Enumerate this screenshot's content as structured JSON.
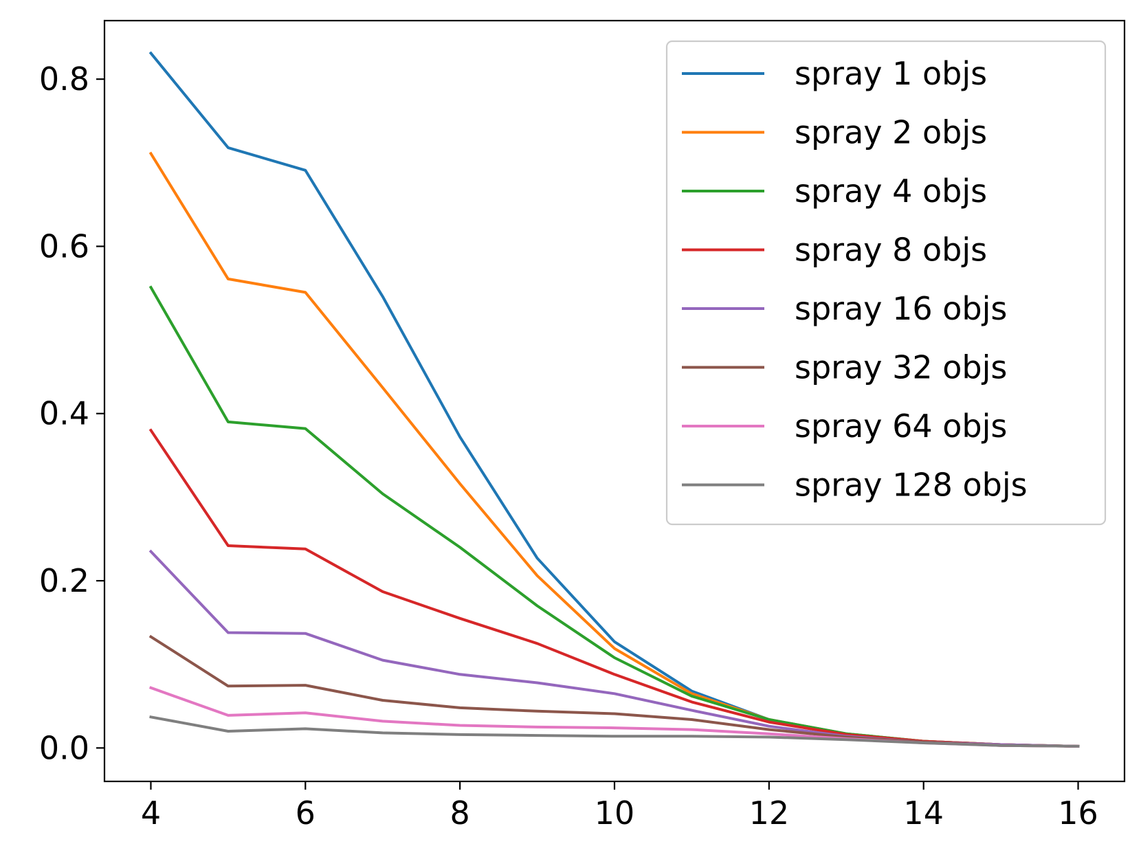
{
  "chart_data": {
    "type": "line",
    "title": "",
    "xlabel": "",
    "ylabel": "",
    "xlim": [
      3.4,
      16.6
    ],
    "ylim": [
      -0.04,
      0.87
    ],
    "xticks": [
      4,
      6,
      8,
      10,
      12,
      14,
      16
    ],
    "xtick_labels": [
      "4",
      "6",
      "8",
      "10",
      "12",
      "14",
      "16"
    ],
    "yticks": [
      0.0,
      0.2,
      0.4,
      0.6,
      0.8
    ],
    "ytick_labels": [
      "0.0",
      "0.2",
      "0.4",
      "0.6",
      "0.8"
    ],
    "grid": false,
    "legend_position": "top-right",
    "x": [
      4,
      5,
      6,
      7,
      8,
      9,
      10,
      11,
      12,
      13,
      14,
      15,
      16
    ],
    "series": [
      {
        "name": "spray 1 objs",
        "color": "#1f77b4",
        "values": [
          0.831,
          0.718,
          0.691,
          0.54,
          0.372,
          0.227,
          0.127,
          0.068,
          0.034,
          0.017,
          0.008,
          0.004,
          0.002
        ]
      },
      {
        "name": "spray 2 objs",
        "color": "#ff7f0e",
        "values": [
          0.711,
          0.561,
          0.545,
          0.431,
          0.316,
          0.206,
          0.119,
          0.065,
          0.034,
          0.017,
          0.008,
          0.004,
          0.002
        ]
      },
      {
        "name": "spray 4 objs",
        "color": "#2ca02c",
        "values": [
          0.551,
          0.39,
          0.382,
          0.304,
          0.24,
          0.17,
          0.108,
          0.062,
          0.034,
          0.017,
          0.008,
          0.004,
          0.002
        ]
      },
      {
        "name": "spray 8 objs",
        "color": "#d62728",
        "values": [
          0.38,
          0.242,
          0.238,
          0.187,
          0.155,
          0.125,
          0.088,
          0.055,
          0.031,
          0.016,
          0.008,
          0.004,
          0.002
        ]
      },
      {
        "name": "spray 16 objs",
        "color": "#9467bd",
        "values": [
          0.235,
          0.138,
          0.137,
          0.105,
          0.088,
          0.078,
          0.065,
          0.045,
          0.026,
          0.014,
          0.007,
          0.004,
          0.002
        ]
      },
      {
        "name": "spray 32 objs",
        "color": "#8c564b",
        "values": [
          0.133,
          0.074,
          0.075,
          0.057,
          0.048,
          0.044,
          0.041,
          0.034,
          0.022,
          0.013,
          0.007,
          0.003,
          0.002
        ]
      },
      {
        "name": "spray 64 objs",
        "color": "#e377c2",
        "values": [
          0.072,
          0.039,
          0.042,
          0.032,
          0.027,
          0.025,
          0.024,
          0.022,
          0.017,
          0.011,
          0.006,
          0.003,
          0.002
        ]
      },
      {
        "name": "spray 128 objs",
        "color": "#7f7f7f",
        "values": [
          0.037,
          0.02,
          0.023,
          0.018,
          0.016,
          0.015,
          0.014,
          0.014,
          0.013,
          0.01,
          0.006,
          0.003,
          0.002
        ]
      }
    ]
  }
}
